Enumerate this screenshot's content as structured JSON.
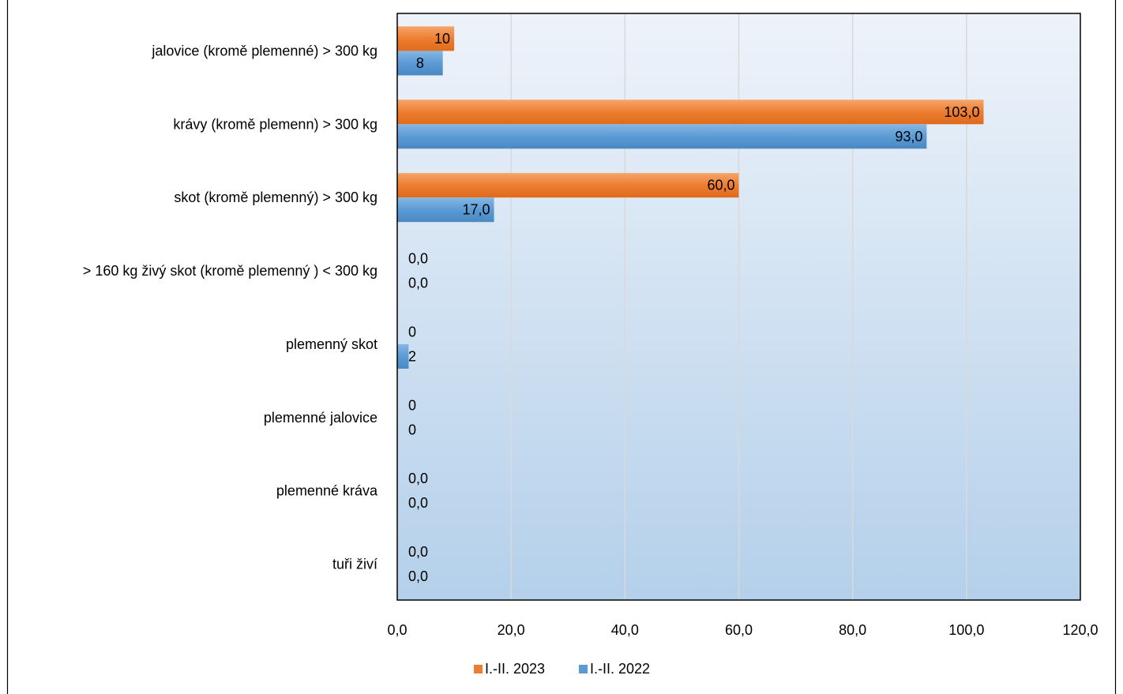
{
  "chart_data": {
    "type": "bar",
    "orientation": "horizontal",
    "categories": [
      "jalovice (kromě plemenné) > 300 kg",
      "krávy (kromě plemenn) > 300 kg",
      "skot (kromě plemenný) > 300 kg",
      "> 160 kg živý skot  (kromě plemenný ) < 300 kg",
      "plemenný skot",
      "plemenné jalovice",
      "plemenné kráva",
      "tuři živí"
    ],
    "series": [
      {
        "name": "I.-II. 2023",
        "color": "#ED7D31",
        "values": [
          10,
          103,
          60,
          0,
          0,
          0,
          0,
          0
        ],
        "labels": [
          "10",
          "103,0",
          "60,0",
          "0,0",
          "0",
          "0",
          "0,0",
          "0,0"
        ]
      },
      {
        "name": "I.-II. 2022",
        "color": "#5B9BD5",
        "values": [
          8,
          93,
          17,
          0,
          2,
          0,
          0,
          0
        ],
        "labels": [
          "8",
          "93,0",
          "17,0",
          "0,0",
          "2",
          "0",
          "0,0",
          "0,0"
        ]
      }
    ],
    "xlim": [
      0,
      120
    ],
    "xticks": [
      "0,0",
      "20,0",
      "40,0",
      "60,0",
      "80,0",
      "100,0",
      "120,0"
    ],
    "grid": true,
    "legend_position": "bottom"
  }
}
